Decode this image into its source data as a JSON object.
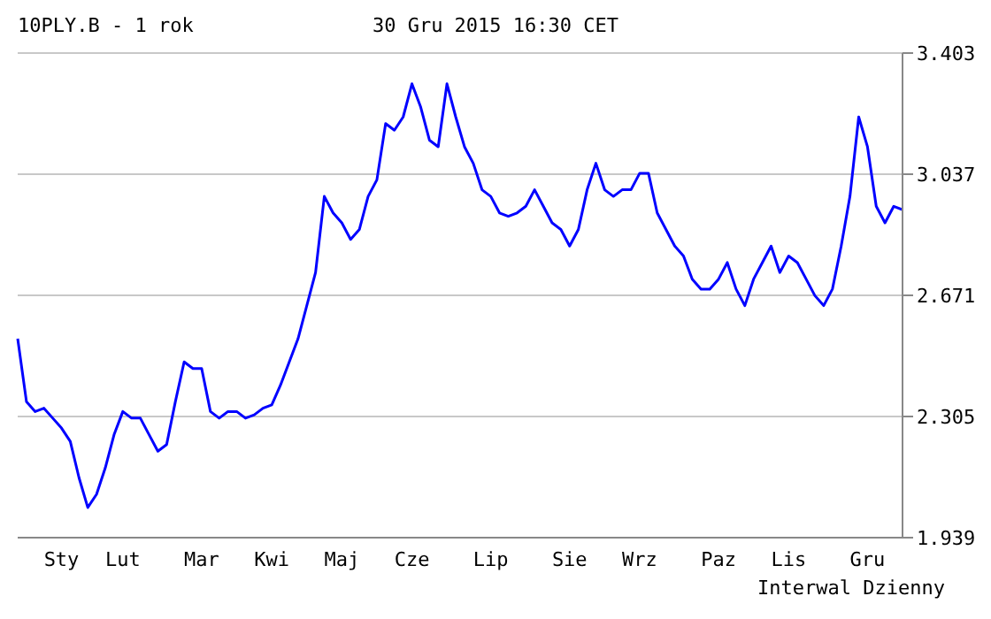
{
  "chart_data": {
    "type": "line",
    "title": "10PLY.B - 1 rok",
    "subtitle": "30 Gru 2015 16:30 CET",
    "annotations": [
      "Interwal Dzienny"
    ],
    "categories": [
      null,
      null,
      null,
      null,
      null,
      "Sty",
      null,
      null,
      null,
      null,
      null,
      null,
      "Lut",
      null,
      null,
      null,
      null,
      null,
      null,
      null,
      null,
      "Mar",
      null,
      null,
      null,
      null,
      null,
      null,
      null,
      "Kwi",
      null,
      null,
      null,
      null,
      null,
      null,
      null,
      "Maj",
      null,
      null,
      null,
      null,
      null,
      null,
      null,
      "Cze",
      null,
      null,
      null,
      null,
      null,
      null,
      null,
      null,
      "Lip",
      null,
      null,
      null,
      null,
      null,
      null,
      null,
      null,
      "Sie",
      null,
      null,
      null,
      null,
      null,
      null,
      null,
      "Wrz",
      null,
      null,
      null,
      null,
      null,
      null,
      null,
      null,
      "Paz",
      null,
      null,
      null,
      null,
      null,
      null,
      null,
      "Lis",
      null,
      null,
      null,
      null,
      null,
      null,
      null,
      null,
      "Gru",
      null,
      null,
      null,
      null
    ],
    "series": [
      {
        "color": "#0000ff",
        "values": [
          2.54,
          2.35,
          2.32,
          2.33,
          2.3,
          2.27,
          2.23,
          2.12,
          2.03,
          2.07,
          2.15,
          2.25,
          2.32,
          2.3,
          2.3,
          2.25,
          2.2,
          2.22,
          2.35,
          2.47,
          2.45,
          2.45,
          2.32,
          2.3,
          2.32,
          2.32,
          2.3,
          2.31,
          2.33,
          2.34,
          2.4,
          2.47,
          2.54,
          2.64,
          2.74,
          2.97,
          2.92,
          2.89,
          2.84,
          2.87,
          2.97,
          3.02,
          3.19,
          3.17,
          3.21,
          3.31,
          3.24,
          3.14,
          3.12,
          3.31,
          3.21,
          3.12,
          3.07,
          2.99,
          2.97,
          2.92,
          2.91,
          2.92,
          2.94,
          2.99,
          2.94,
          2.89,
          2.87,
          2.82,
          2.87,
          2.99,
          3.07,
          2.99,
          2.97,
          2.99,
          2.99,
          3.04,
          3.04,
          2.92,
          2.87,
          2.82,
          2.79,
          2.72,
          2.69,
          2.69,
          2.72,
          2.77,
          2.69,
          2.64,
          2.72,
          2.77,
          2.82,
          2.74,
          2.79,
          2.77,
          2.72,
          2.67,
          2.64,
          2.69,
          2.82,
          2.97,
          3.21,
          3.12,
          2.94,
          2.89,
          2.94,
          2.93
        ]
      }
    ],
    "ylim": [
      1.939,
      3.403
    ],
    "yticks": [
      1.939,
      2.305,
      2.671,
      3.037,
      3.403
    ],
    "grid": "y",
    "legend": false,
    "marker": "none",
    "line_style": "solid"
  }
}
